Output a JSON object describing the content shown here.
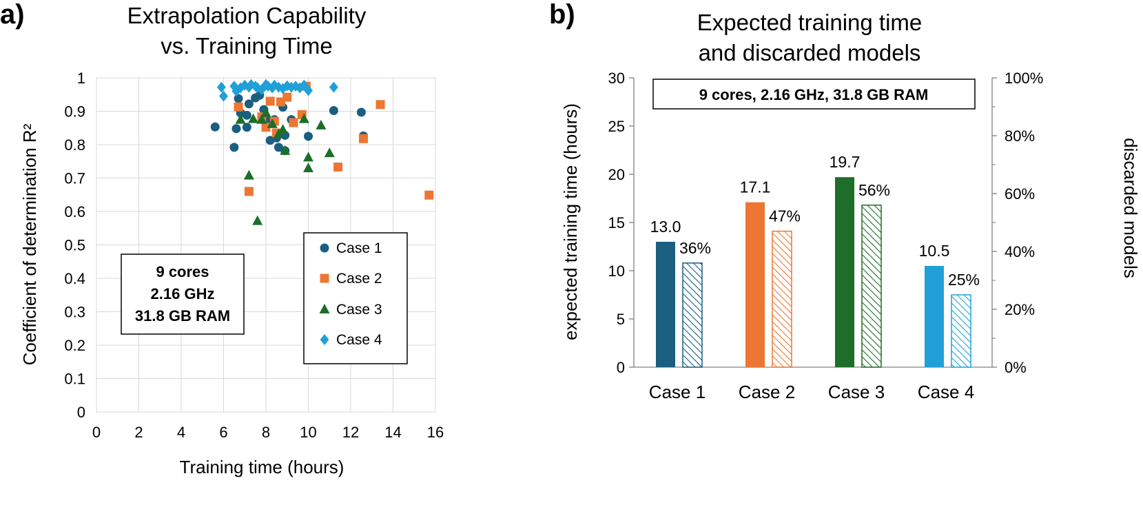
{
  "colors": {
    "case1": "#1a5e80",
    "case2": "#ec7632",
    "case3": "#1d6e28",
    "case4": "#21a0d8",
    "grid": "#d9d9d9",
    "axis": "#808080"
  },
  "chart_data": [
    {
      "panel": "a)",
      "type": "scatter",
      "title": [
        "Extrapolation Capability",
        "vs. Training Time"
      ],
      "xlabel": "Training time (hours)",
      "ylabel": "Coefficient of determination R²",
      "xlim": [
        0,
        16
      ],
      "ylim": [
        0,
        1
      ],
      "xticks": [
        0,
        2,
        4,
        6,
        8,
        10,
        12,
        14,
        16
      ],
      "yticks": [
        0,
        0.1,
        0.2,
        0.3,
        0.4,
        0.5,
        0.6,
        0.7,
        0.8,
        0.9,
        1
      ],
      "ytick_labels": [
        "0",
        "0.1",
        "0.2",
        "0.3",
        "0.4",
        "0.5",
        "0.6",
        "0.7",
        "0.8",
        "0.9",
        "1"
      ],
      "grid": true,
      "legend_position": "bottom-right",
      "annotation": [
        "9 cores",
        "2.16 GHz",
        "31.8 GB RAM"
      ],
      "series": [
        {
          "name": "Case 1",
          "marker": "circle",
          "x": [
            5.6,
            6.5,
            6.6,
            6.7,
            6.8,
            7.1,
            7.2,
            7.1,
            7.5,
            7.7,
            7.9,
            8.1,
            8.2,
            8.4,
            8.5,
            8.6,
            8.8,
            8.9,
            8.9,
            9.2,
            10.0,
            11.2,
            12.5,
            12.6
          ],
          "y": [
            0.853,
            0.792,
            0.848,
            0.938,
            0.895,
            0.852,
            0.922,
            0.888,
            0.94,
            0.948,
            0.905,
            0.87,
            0.813,
            0.875,
            0.82,
            0.792,
            0.912,
            0.828,
            0.782,
            0.875,
            0.825,
            0.902,
            0.897,
            0.826
          ]
        },
        {
          "name": "Case 2",
          "marker": "square",
          "x": [
            6.7,
            7.2,
            7.8,
            8.0,
            8.2,
            8.4,
            8.5,
            8.7,
            9.0,
            9.3,
            9.7,
            9.9,
            11.4,
            12.6,
            13.4,
            15.7
          ],
          "y": [
            0.913,
            0.66,
            0.883,
            0.852,
            0.93,
            0.87,
            0.835,
            0.928,
            0.942,
            0.866,
            0.89,
            0.975,
            0.733,
            0.818,
            0.92,
            0.649
          ]
        },
        {
          "name": "Case 3",
          "marker": "triangle",
          "x": [
            6.8,
            7.2,
            7.4,
            7.6,
            7.8,
            8.0,
            8.3,
            8.6,
            8.8,
            8.9,
            9.8,
            10.0,
            10.0,
            10.6,
            11.0
          ],
          "y": [
            0.875,
            0.708,
            0.877,
            0.572,
            0.875,
            0.895,
            0.862,
            0.832,
            0.845,
            0.782,
            0.877,
            0.762,
            0.73,
            0.858,
            0.775
          ]
        },
        {
          "name": "Case 4",
          "marker": "diamond",
          "x": [
            5.9,
            6.0,
            6.5,
            6.6,
            6.8,
            7.0,
            7.2,
            7.3,
            7.5,
            7.6,
            7.8,
            8.0,
            8.1,
            8.3,
            8.4,
            8.6,
            8.8,
            9.0,
            9.2,
            9.4,
            9.6,
            9.8,
            10.0,
            11.2
          ],
          "y": [
            0.972,
            0.945,
            0.975,
            0.96,
            0.97,
            0.978,
            0.972,
            0.98,
            0.975,
            0.97,
            0.965,
            0.98,
            0.975,
            0.97,
            0.978,
            0.972,
            0.968,
            0.976,
            0.972,
            0.975,
            0.97,
            0.978,
            0.962,
            0.972
          ]
        }
      ]
    },
    {
      "panel": "b)",
      "type": "bar",
      "title": [
        "Expected training time",
        "and discarded models"
      ],
      "ylabel": "expected training time (hours)",
      "y2label": "discarded models",
      "ylim": [
        0,
        30
      ],
      "yticks": [
        0,
        5,
        10,
        15,
        20,
        25,
        30
      ],
      "y2lim": [
        0,
        100
      ],
      "y2ticks": [
        0,
        20,
        40,
        60,
        80,
        100
      ],
      "y2tick_labels": [
        "0%",
        "20%",
        "40%",
        "60%",
        "80%",
        "100%"
      ],
      "grid": false,
      "annotation": "9 cores, 2.16 GHz, 31.8 GB RAM",
      "categories": [
        "Case 1",
        "Case 2",
        "Case 3",
        "Case 4"
      ],
      "series": [
        {
          "name": "expected training time (hours)",
          "axis": "left",
          "fill": "solid",
          "values": [
            13.0,
            17.1,
            19.7,
            10.5
          ],
          "labels": [
            "13.0",
            "17.1",
            "19.7",
            "10.5"
          ]
        },
        {
          "name": "discarded models",
          "axis": "right",
          "fill": "hatched",
          "values": [
            36,
            47,
            56,
            25
          ],
          "labels": [
            "36%",
            "47%",
            "56%",
            "25%"
          ]
        }
      ]
    }
  ]
}
